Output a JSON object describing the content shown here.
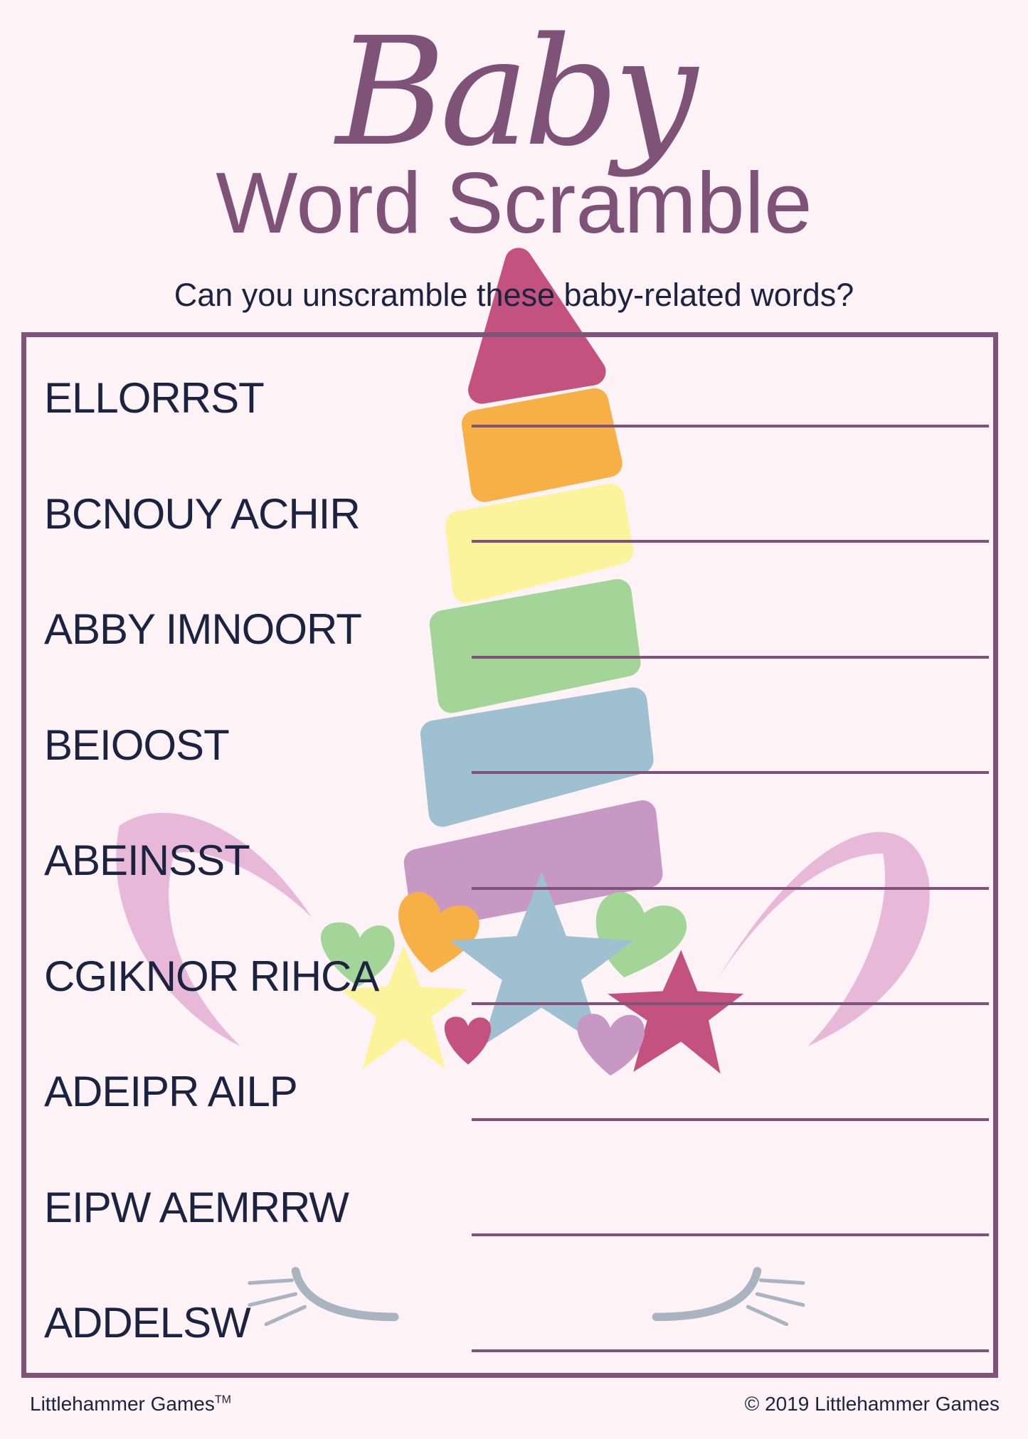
{
  "header": {
    "script_title": "Baby",
    "title": "Word Scramble",
    "subtitle": "Can you unscramble these baby-related words?"
  },
  "puzzle": {
    "words": [
      "ELLORRST",
      "BCNOUY ACHIR",
      "ABBY IMNOORT",
      "BEIOOST",
      "ABEINSST",
      "CGIKNOR RIHCA",
      "ADEIPR AILP",
      "EIPW AEMRRW",
      "ADDELSW"
    ]
  },
  "footer": {
    "brand": "Littlehammer Games",
    "trademark": "TM",
    "copyright": "© 2019 Littlehammer Games"
  },
  "colors": {
    "accent": "#7f5378",
    "text": "#1c2340",
    "background": "#fdf3f7",
    "horn": [
      "#c4527f",
      "#f7b046",
      "#fbf49c",
      "#a2d597",
      "#9fc0d0",
      "#c898c4"
    ]
  },
  "illustration": "unicorn-horn-icon"
}
